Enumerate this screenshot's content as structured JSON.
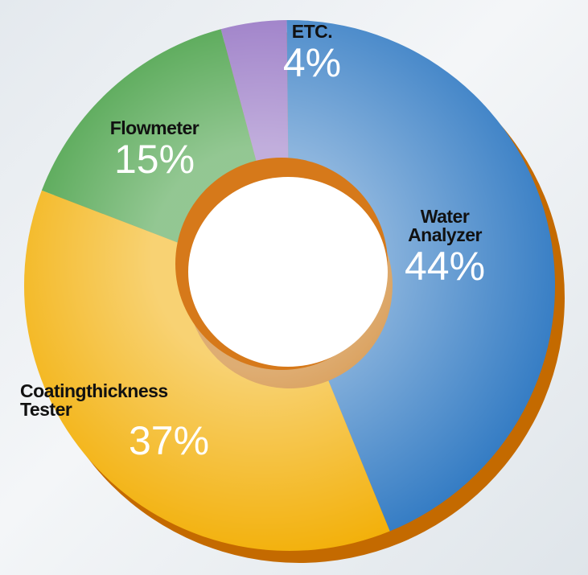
{
  "chart_data": {
    "type": "donut",
    "categories": [
      "ETC.",
      "Water Analyzer",
      "Coatingthickness Tester",
      "Flowmeter"
    ],
    "values": [
      4,
      44,
      37,
      15
    ],
    "value_labels": [
      "4%",
      "44%",
      "37%",
      "15%"
    ],
    "colors": [
      "#8f6cc0",
      "#2e78c2",
      "#f2ad00",
      "#3b9a3a"
    ]
  }
}
